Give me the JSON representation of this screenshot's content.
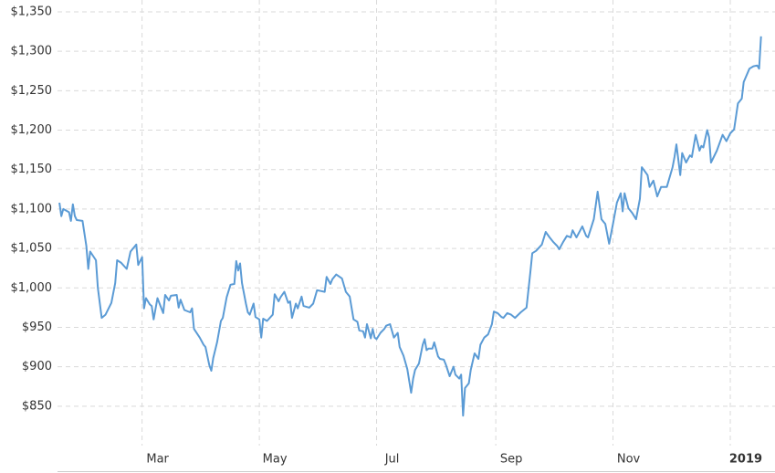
{
  "chart_data": {
    "type": "line",
    "color": "#5b9bd5",
    "grid": true,
    "xlim": [
      15,
      384
    ],
    "ylim": [
      800,
      1350
    ],
    "xticks": [
      {
        "value": 59,
        "label": "Mar"
      },
      {
        "value": 120,
        "label": "May"
      },
      {
        "value": 181,
        "label": "Jul"
      },
      {
        "value": 243,
        "label": "Sep"
      },
      {
        "value": 304,
        "label": "Nov"
      },
      {
        "value": 365,
        "label": "2019"
      }
    ],
    "yticks": [
      {
        "value": 850,
        "label": "$850"
      },
      {
        "value": 900,
        "label": "$900"
      },
      {
        "value": 950,
        "label": "$950"
      },
      {
        "value": 1000,
        "label": "$1,000"
      },
      {
        "value": 1050,
        "label": "$1,050"
      },
      {
        "value": 1100,
        "label": "$1,100"
      },
      {
        "value": 1150,
        "label": "$1,150"
      },
      {
        "value": 1200,
        "label": "$1,200"
      },
      {
        "value": 1250,
        "label": "$1,250"
      },
      {
        "value": 1300,
        "label": "$1,300"
      },
      {
        "value": 1350,
        "label": "$1,350"
      }
    ],
    "x": [
      16,
      17,
      18,
      21,
      22,
      23,
      24,
      25,
      28,
      30,
      31,
      32,
      35,
      36,
      38,
      40,
      43,
      45,
      46,
      48,
      51,
      53,
      56,
      57,
      59,
      60,
      61,
      63,
      64,
      65,
      67,
      70,
      71,
      73,
      74,
      77,
      78,
      79,
      81,
      84,
      85,
      86,
      89,
      91,
      92,
      94,
      95,
      96,
      98,
      100,
      101,
      103,
      105,
      107,
      108,
      109,
      110,
      111,
      113,
      114,
      115,
      117,
      118,
      120,
      121,
      122,
      124,
      127,
      128,
      130,
      131,
      133,
      135,
      136,
      137,
      139,
      140,
      142,
      143,
      146,
      148,
      150,
      152,
      154,
      155,
      157,
      158,
      160,
      163,
      165,
      167,
      169,
      171,
      172,
      174,
      175,
      176,
      178,
      179,
      180,
      181,
      183,
      185,
      186,
      188,
      190,
      192,
      193,
      195,
      197,
      199,
      200,
      201,
      203,
      205,
      206,
      207,
      208,
      210,
      211,
      213,
      214,
      216,
      217,
      219,
      221,
      222,
      224,
      225,
      226,
      227,
      229,
      230,
      232,
      234,
      235,
      237,
      239,
      241,
      242,
      244,
      246,
      247,
      249,
      251,
      253,
      256,
      259,
      261,
      262,
      264,
      267,
      269,
      271,
      273,
      275,
      276,
      278,
      280,
      282,
      283,
      285,
      287,
      288,
      290,
      291,
      294,
      296,
      298,
      300,
      302,
      304,
      306,
      308,
      309,
      310,
      312,
      314,
      316,
      318,
      319,
      322,
      323,
      325,
      327,
      329,
      332,
      335,
      336,
      337,
      339,
      340,
      342,
      344,
      345,
      347,
      349,
      350,
      351,
      353,
      354,
      355,
      358,
      361,
      363,
      365,
      367,
      369,
      371,
      372,
      375,
      377,
      379,
      380,
      381
    ],
    "values": [
      1108,
      1091,
      1100,
      1096,
      1085,
      1106,
      1091,
      1086,
      1085,
      1053,
      1024,
      1046,
      1035,
      1000,
      962,
      966,
      981,
      1006,
      1035,
      1032,
      1024,
      1046,
      1055,
      1029,
      1039,
      974,
      987,
      979,
      977,
      960,
      987,
      968,
      991,
      984,
      990,
      991,
      975,
      985,
      972,
      969,
      974,
      948,
      937,
      928,
      925,
      902,
      895,
      911,
      931,
      958,
      962,
      988,
      1004,
      1005,
      1034,
      1022,
      1031,
      1006,
      980,
      969,
      966,
      980,
      963,
      960,
      937,
      961,
      958,
      966,
      992,
      983,
      988,
      995,
      981,
      983,
      962,
      980,
      974,
      989,
      977,
      975,
      980,
      997,
      996,
      995,
      1014,
      1005,
      1011,
      1017,
      1012,
      995,
      989,
      960,
      957,
      946,
      945,
      937,
      954,
      936,
      948,
      937,
      935,
      943,
      948,
      952,
      954,
      937,
      943,
      925,
      914,
      897,
      867,
      885,
      896,
      904,
      928,
      935,
      921,
      923,
      923,
      931,
      913,
      910,
      909,
      903,
      888,
      900,
      890,
      885,
      890,
      838,
      873,
      879,
      896,
      917,
      910,
      928,
      937,
      941,
      954,
      970,
      968,
      963,
      962,
      968,
      966,
      962,
      969,
      975,
      1020,
      1044,
      1047,
      1055,
      1071,
      1064,
      1058,
      1053,
      1049,
      1058,
      1066,
      1064,
      1073,
      1064,
      1073,
      1078,
      1066,
      1064,
      1087,
      1122,
      1087,
      1081,
      1056,
      1081,
      1108,
      1120,
      1097,
      1120,
      1101,
      1095,
      1087,
      1113,
      1153,
      1143,
      1128,
      1136,
      1116,
      1128,
      1128,
      1153,
      1166,
      1182,
      1143,
      1171,
      1159,
      1168,
      1166,
      1194,
      1174,
      1180,
      1178,
      1200,
      1191,
      1159,
      1174,
      1194,
      1186,
      1196,
      1201,
      1234,
      1240,
      1261,
      1278,
      1281,
      1282,
      1278,
      1319
    ]
  }
}
